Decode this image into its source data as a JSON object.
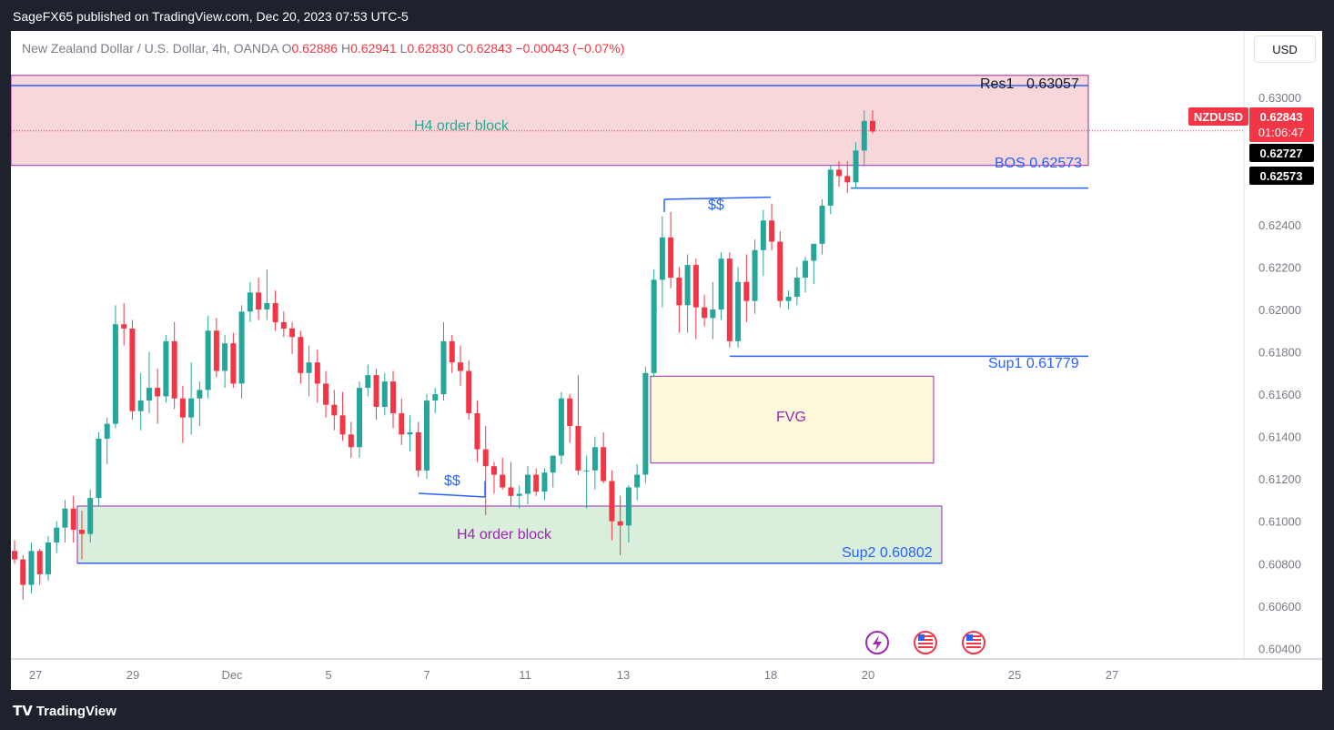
{
  "header": {
    "publisher_line": "SageFX65 published on TradingView.com, Dec 20, 2023 07:53 UTC-5"
  },
  "symbol": {
    "title": "New Zealand Dollar / U.S. Dollar, 4h, OANDA",
    "o_label": "O",
    "o_value": "0.62886",
    "h_label": "H",
    "h_value": "0.62941",
    "l_label": "L",
    "l_value": "0.62830",
    "c_label": "C",
    "c_value": "0.62843",
    "change": "−0.00043 (−0.07%)"
  },
  "currency_button": "USD",
  "price_badges": {
    "ticker": "NZDUSD",
    "last_price": "0.62843",
    "countdown": "01:06:47",
    "level1": "0.62727",
    "level2": "0.62573"
  },
  "colors": {
    "up": "#26a69a",
    "down": "#f23645",
    "resistance_zone": "#f8d7da",
    "support_zone": "#d9efdc",
    "fvg_zone": "#fff9dc",
    "zone_border": "#9c27b0",
    "level_line": "#2962ff"
  },
  "footer": {
    "brand": "TradingView"
  },
  "icons": [
    "lightning-icon",
    "us-flag-icon",
    "us-flag-icon"
  ],
  "chart_data": {
    "type": "candlestick",
    "x_tick_labels": [
      "27",
      "29",
      "Dec",
      "5",
      "7",
      "11",
      "13",
      "18",
      "20",
      "25",
      "27"
    ],
    "y_tick_labels": [
      "0.63000",
      "0.62400",
      "0.62200",
      "0.62000",
      "0.61800",
      "0.61600",
      "0.61400",
      "0.61200",
      "0.61000",
      "0.60800",
      "0.60600",
      "0.60400"
    ],
    "ylim": [
      0.6035,
      0.6316
    ],
    "last_close": 0.62843,
    "annotations": {
      "res1_label": "Res1",
      "res1_value": "0.63057",
      "h4_top": "H4 order block",
      "bos": "BOS 0.62573",
      "ss_top": "$$",
      "sup1": "Sup1 0.61779",
      "fvg": "FVG",
      "ss_bottom": "$$",
      "h4_bottom": "H4 order block",
      "sup2": "Sup2 0.60802"
    },
    "levels": {
      "res1": 0.63057,
      "bos": 0.62573,
      "sup1": 0.61779,
      "sup2": 0.60802,
      "current_badge_2": 0.62727
    },
    "candles": [
      [
        0.6086,
        0.6091,
        0.608,
        0.6082
      ],
      [
        0.6082,
        0.6084,
        0.6063,
        0.607
      ],
      [
        0.607,
        0.609,
        0.6066,
        0.6086
      ],
      [
        0.6086,
        0.6087,
        0.607,
        0.6075
      ],
      [
        0.6075,
        0.6093,
        0.6072,
        0.609
      ],
      [
        0.609,
        0.61,
        0.6085,
        0.6097
      ],
      [
        0.6097,
        0.611,
        0.609,
        0.6106
      ],
      [
        0.6106,
        0.6112,
        0.609,
        0.6096
      ],
      [
        0.6096,
        0.6105,
        0.6082,
        0.6094
      ],
      [
        0.6094,
        0.6115,
        0.609,
        0.6111
      ],
      [
        0.6111,
        0.6142,
        0.6107,
        0.6139
      ],
      [
        0.6139,
        0.6149,
        0.6127,
        0.6146
      ],
      [
        0.6146,
        0.6202,
        0.6144,
        0.6193
      ],
      [
        0.6193,
        0.6203,
        0.6183,
        0.6191
      ],
      [
        0.6191,
        0.6195,
        0.6148,
        0.6152
      ],
      [
        0.6152,
        0.617,
        0.6143,
        0.6157
      ],
      [
        0.6157,
        0.618,
        0.6151,
        0.6163
      ],
      [
        0.6163,
        0.6172,
        0.6146,
        0.6159
      ],
      [
        0.6159,
        0.6188,
        0.6156,
        0.6185
      ],
      [
        0.6185,
        0.6194,
        0.6153,
        0.6158
      ],
      [
        0.6158,
        0.6164,
        0.6137,
        0.6149
      ],
      [
        0.6149,
        0.6175,
        0.6141,
        0.6158
      ],
      [
        0.6158,
        0.6166,
        0.6145,
        0.6162
      ],
      [
        0.6162,
        0.6197,
        0.6158,
        0.619
      ],
      [
        0.619,
        0.6196,
        0.6168,
        0.6171
      ],
      [
        0.6171,
        0.6188,
        0.6163,
        0.6184
      ],
      [
        0.6184,
        0.6189,
        0.6163,
        0.6165
      ],
      [
        0.6165,
        0.6202,
        0.6158,
        0.6199
      ],
      [
        0.6199,
        0.6213,
        0.6194,
        0.6208
      ],
      [
        0.6208,
        0.6215,
        0.6195,
        0.62
      ],
      [
        0.62,
        0.6219,
        0.6195,
        0.6203
      ],
      [
        0.6203,
        0.6209,
        0.619,
        0.6194
      ],
      [
        0.6194,
        0.6199,
        0.6187,
        0.6191
      ],
      [
        0.6191,
        0.6194,
        0.6179,
        0.6187
      ],
      [
        0.6187,
        0.619,
        0.6165,
        0.617
      ],
      [
        0.617,
        0.6183,
        0.6159,
        0.6175
      ],
      [
        0.6175,
        0.6181,
        0.6156,
        0.6165
      ],
      [
        0.6165,
        0.6171,
        0.6149,
        0.6155
      ],
      [
        0.6155,
        0.6162,
        0.6143,
        0.615
      ],
      [
        0.615,
        0.6161,
        0.6138,
        0.6141
      ],
      [
        0.6141,
        0.6147,
        0.613,
        0.6135
      ],
      [
        0.6135,
        0.6166,
        0.613,
        0.6163
      ],
      [
        0.6163,
        0.6174,
        0.6159,
        0.6169
      ],
      [
        0.6169,
        0.6172,
        0.6148,
        0.6154
      ],
      [
        0.6154,
        0.617,
        0.615,
        0.6166
      ],
      [
        0.6166,
        0.6171,
        0.6144,
        0.6151
      ],
      [
        0.6151,
        0.6158,
        0.6136,
        0.6141
      ],
      [
        0.6141,
        0.615,
        0.6133,
        0.6142
      ],
      [
        0.6142,
        0.6147,
        0.6121,
        0.6124
      ],
      [
        0.6124,
        0.616,
        0.612,
        0.6157
      ],
      [
        0.6157,
        0.6163,
        0.6151,
        0.616
      ],
      [
        0.616,
        0.6194,
        0.6157,
        0.6185
      ],
      [
        0.6185,
        0.6188,
        0.617,
        0.6175
      ],
      [
        0.6175,
        0.6183,
        0.6164,
        0.6171
      ],
      [
        0.6171,
        0.6176,
        0.6148,
        0.6151
      ],
      [
        0.6151,
        0.6157,
        0.6128,
        0.6134
      ],
      [
        0.6134,
        0.6145,
        0.6103,
        0.6126
      ],
      [
        0.6126,
        0.6128,
        0.6113,
        0.6122
      ],
      [
        0.6122,
        0.613,
        0.6115,
        0.6116
      ],
      [
        0.6116,
        0.6128,
        0.6107,
        0.6112
      ],
      [
        0.6112,
        0.6117,
        0.6106,
        0.6113
      ],
      [
        0.6113,
        0.6126,
        0.6108,
        0.6122
      ],
      [
        0.6122,
        0.6125,
        0.6112,
        0.6114
      ],
      [
        0.6114,
        0.6125,
        0.611,
        0.6123
      ],
      [
        0.6123,
        0.6131,
        0.6116,
        0.6131
      ],
      [
        0.6131,
        0.6161,
        0.6127,
        0.6158
      ],
      [
        0.6158,
        0.616,
        0.6137,
        0.6145
      ],
      [
        0.6145,
        0.6169,
        0.6122,
        0.6124
      ],
      [
        0.6124,
        0.6131,
        0.6106,
        0.6124
      ],
      [
        0.6124,
        0.614,
        0.6115,
        0.6135
      ],
      [
        0.6135,
        0.6142,
        0.6118,
        0.6119
      ],
      [
        0.6119,
        0.6124,
        0.6091,
        0.61
      ],
      [
        0.61,
        0.6112,
        0.6084,
        0.6098
      ],
      [
        0.6098,
        0.6117,
        0.609,
        0.6116
      ],
      [
        0.6116,
        0.6127,
        0.611,
        0.6122
      ],
      [
        0.6122,
        0.6173,
        0.6118,
        0.617
      ],
      [
        0.617,
        0.6219,
        0.6168,
        0.6214
      ],
      [
        0.6214,
        0.6244,
        0.6201,
        0.6234
      ],
      [
        0.6234,
        0.6246,
        0.621,
        0.6215
      ],
      [
        0.6215,
        0.622,
        0.6189,
        0.6202
      ],
      [
        0.6202,
        0.6226,
        0.6189,
        0.6221
      ],
      [
        0.6221,
        0.6224,
        0.6186,
        0.6201
      ],
      [
        0.6201,
        0.6207,
        0.6192,
        0.6196
      ],
      [
        0.6196,
        0.6213,
        0.6186,
        0.62
      ],
      [
        0.62,
        0.6227,
        0.6195,
        0.6224
      ],
      [
        0.6224,
        0.6227,
        0.6182,
        0.6185
      ],
      [
        0.6185,
        0.622,
        0.6182,
        0.6213
      ],
      [
        0.6213,
        0.6226,
        0.6194,
        0.6204
      ],
      [
        0.6204,
        0.6233,
        0.6198,
        0.6228
      ],
      [
        0.6228,
        0.6247,
        0.6216,
        0.6242
      ],
      [
        0.6242,
        0.625,
        0.6228,
        0.6232
      ],
      [
        0.6232,
        0.6237,
        0.6201,
        0.6204
      ],
      [
        0.6204,
        0.6209,
        0.62,
        0.6206
      ],
      [
        0.6206,
        0.622,
        0.6202,
        0.6215
      ],
      [
        0.6215,
        0.6225,
        0.6208,
        0.6223
      ],
      [
        0.6223,
        0.6231,
        0.6212,
        0.6231
      ],
      [
        0.6231,
        0.6252,
        0.6226,
        0.6249
      ],
      [
        0.6249,
        0.6268,
        0.6245,
        0.6266
      ],
      [
        0.6266,
        0.627,
        0.6258,
        0.6263
      ],
      [
        0.6263,
        0.627,
        0.6255,
        0.626
      ],
      [
        0.626,
        0.6279,
        0.6257,
        0.6275
      ],
      [
        0.6275,
        0.6294,
        0.6268,
        0.6289
      ],
      [
        0.6289,
        0.6294,
        0.6283,
        0.6284
      ]
    ]
  }
}
